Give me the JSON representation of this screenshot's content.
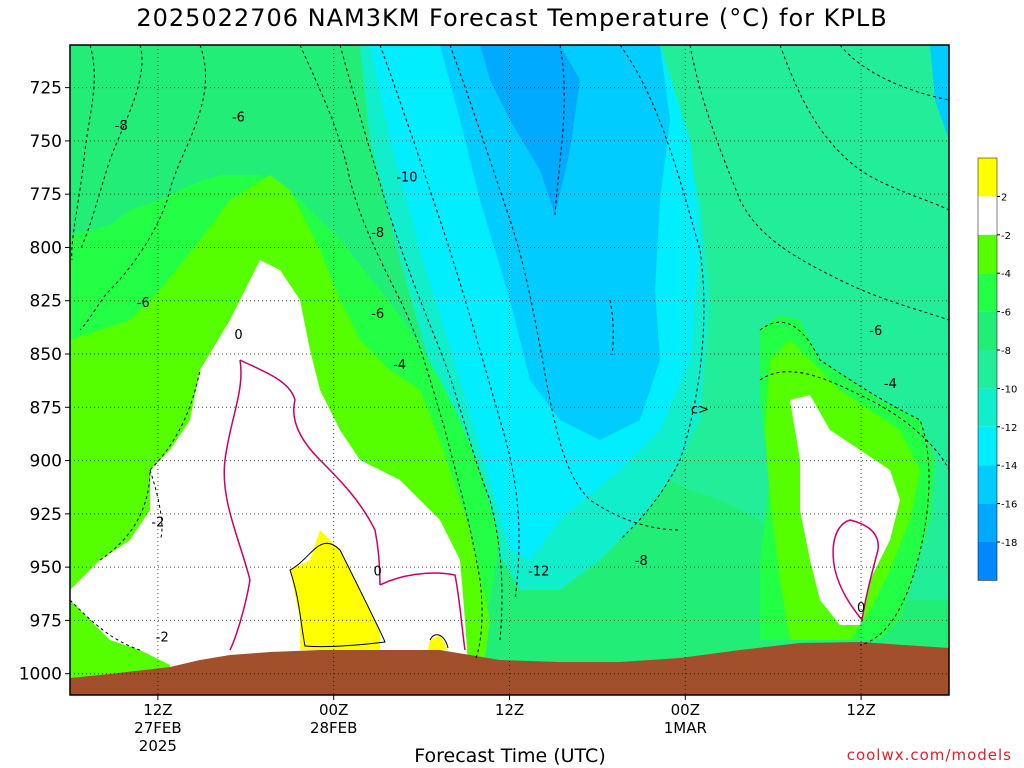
{
  "chart_data": {
    "type": "heatmap",
    "title": "2025022706 NAM3KM Forecast Temperature (°C) for KPLB",
    "xlabel": "Forecast Time (UTC)",
    "ylabel": "",
    "credit": "coolwx.com/models",
    "y_axis": {
      "ticks": [
        725,
        750,
        775,
        800,
        825,
        850,
        875,
        900,
        925,
        950,
        975,
        1000
      ],
      "range": [
        705,
        1010
      ],
      "inverted": true
    },
    "x_axis": {
      "ticks": [
        {
          "label": "12Z",
          "date": "27FEB",
          "year": "2025",
          "hour": 12
        },
        {
          "label": "00Z",
          "date": "28FEB",
          "year": "",
          "hour": 24
        },
        {
          "label": "12Z",
          "date": "",
          "year": "",
          "hour": 36
        },
        {
          "label": "00Z",
          "date": "1MAR",
          "year": "",
          "hour": 48
        },
        {
          "label": "12Z",
          "date": "",
          "year": "",
          "hour": 60
        }
      ],
      "range": [
        6,
        66
      ]
    },
    "grid": true,
    "colorbar": {
      "labels": [
        "2",
        "-2",
        "-4",
        "-6",
        "-8",
        "-10",
        "-12",
        "-14",
        "-16",
        "-18"
      ],
      "colors": [
        "#ffff00",
        "#ffffff",
        "#55ff00",
        "#22ff44",
        "#22ee77",
        "#22ee99",
        "#11eecc",
        "#00eeff",
        "#00ccff",
        "#00aaff",
        "#0088ff"
      ]
    },
    "contour_labels": [
      {
        "text": "-8",
        "x": 9.5,
        "y": 745
      },
      {
        "text": "-6",
        "x": 17.5,
        "y": 741
      },
      {
        "text": "-10",
        "x": 29,
        "y": 769
      },
      {
        "text": "-8",
        "x": 27,
        "y": 795
      },
      {
        "text": "-6",
        "x": 11,
        "y": 828
      },
      {
        "text": "-6",
        "x": 27,
        "y": 833
      },
      {
        "text": "0",
        "x": 17.5,
        "y": 843
      },
      {
        "text": "-4",
        "x": 28.5,
        "y": 857
      },
      {
        "text": "-2",
        "x": 12,
        "y": 931
      },
      {
        "text": "0",
        "x": 27,
        "y": 954
      },
      {
        "text": "-12",
        "x": 38,
        "y": 954
      },
      {
        "text": "-8",
        "x": 45,
        "y": 949
      },
      {
        "text": "-2",
        "x": 12.3,
        "y": 985
      },
      {
        "text": "-6",
        "x": 61,
        "y": 841
      },
      {
        "text": "-4",
        "x": 62,
        "y": 866
      },
      {
        "text": "0",
        "x": 60,
        "y": 971
      },
      {
        "text": "c>",
        "x": 49,
        "y": 878
      }
    ]
  }
}
